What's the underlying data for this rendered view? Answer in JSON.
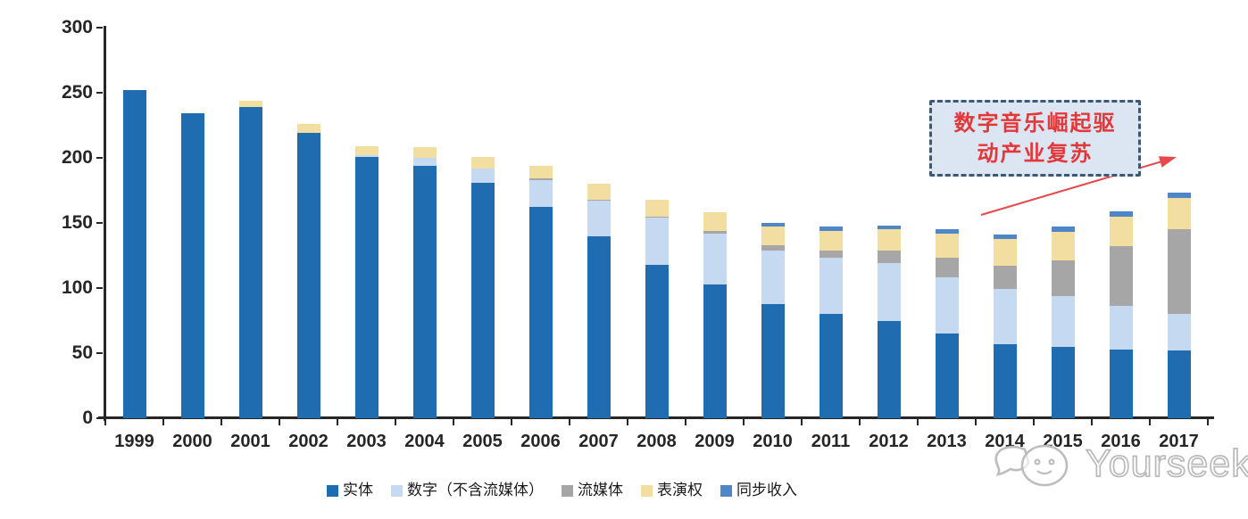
{
  "chart_data": {
    "type": "bar",
    "stacked": true,
    "title": "",
    "xlabel": "",
    "ylabel": "",
    "grid": false,
    "legend_position": "bottom",
    "ylim": [
      0,
      300
    ],
    "yticks": [
      0,
      50,
      100,
      150,
      200,
      250,
      300
    ],
    "categories": [
      "1999",
      "2000",
      "2001",
      "2002",
      "2003",
      "2004",
      "2005",
      "2006",
      "2007",
      "2008",
      "2009",
      "2010",
      "2011",
      "2012",
      "2013",
      "2014",
      "2015",
      "2016",
      "2017"
    ],
    "series": [
      {
        "name": "实体",
        "color": "#1F6CB0",
        "values": [
          252,
          234,
          239,
          219,
          201,
          194,
          181,
          162,
          140,
          118,
          103,
          88,
          80,
          75,
          65,
          57,
          55,
          53,
          52
        ]
      },
      {
        "name": "数字（不含流媒体）",
        "color": "#C5D9F0",
        "values": [
          0,
          0,
          0,
          0,
          1,
          6,
          11,
          21,
          27,
          36,
          39,
          41,
          43,
          44,
          43,
          42,
          39,
          33,
          28
        ]
      },
      {
        "name": "流媒体",
        "color": "#A6A6A6",
        "values": [
          0,
          0,
          0,
          0,
          0,
          0,
          0,
          1,
          1,
          1,
          2,
          4,
          6,
          10,
          15,
          18,
          27,
          46,
          65
        ]
      },
      {
        "name": "表演权",
        "color": "#F2DEA0",
        "values": [
          0,
          0,
          5,
          7,
          7,
          8,
          9,
          10,
          12,
          13,
          14,
          14,
          15,
          16,
          19,
          21,
          22,
          23,
          24
        ]
      },
      {
        "name": "同步收入",
        "color": "#4E86C8",
        "values": [
          0,
          0,
          0,
          0,
          0,
          0,
          0,
          0,
          0,
          0,
          0,
          3,
          3,
          3,
          3,
          3,
          4,
          4,
          4
        ]
      }
    ]
  },
  "annotation": {
    "line1": "数字音乐崛起驱",
    "line2": "动产业复苏",
    "full_text": "数字音乐崛起驱动产业复苏",
    "text_color": "#E2383A",
    "box_fill": "#DCE6F3",
    "box_border": "#3D5875",
    "arrow_color": "#E8474B"
  },
  "watermark": {
    "text": "Yourseeker",
    "logo": "chat-bubble-face-logo"
  },
  "axis": {
    "line_color": "#262626",
    "label_color": "#262626"
  }
}
